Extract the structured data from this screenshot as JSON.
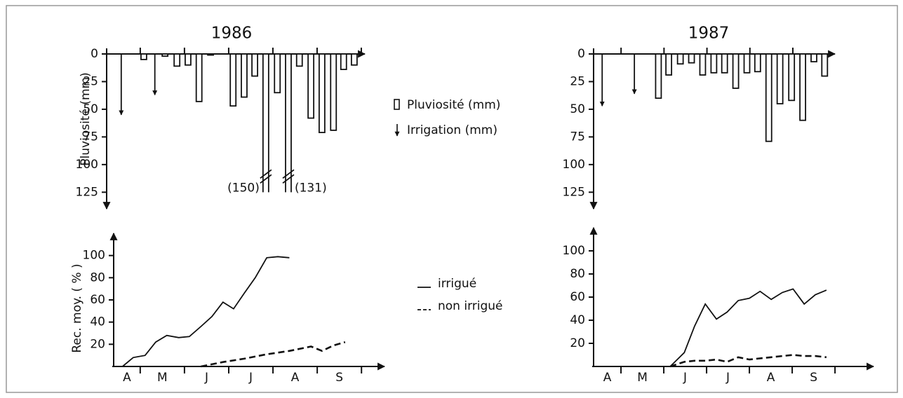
{
  "chart_data": [
    {
      "type": "bar",
      "title": "1986",
      "y_label": "Pluviosité   (mm)",
      "y_inverted": true,
      "categories": [
        "A",
        "M",
        "J",
        "J",
        "A",
        "S"
      ],
      "xlim": [
        0.24,
        6.08
      ],
      "ylim": [
        0,
        140
      ],
      "yticks": [
        0,
        25,
        50,
        75,
        100,
        125
      ],
      "series": [
        {
          "name": "Pluviosité (mm)",
          "type": "bar",
          "color": "#111111",
          "x": [
            1.08,
            1.56,
            1.83,
            2.08,
            2.33,
            2.59,
            3.1,
            3.35,
            3.59,
            3.84,
            4.1,
            4.35,
            4.6,
            4.86,
            5.11,
            5.37,
            5.6,
            5.84
          ],
          "values": [
            5,
            2,
            11,
            10,
            43,
            1,
            47,
            39,
            20,
            150,
            35,
            131,
            11,
            58,
            71,
            69,
            14,
            10
          ],
          "value_labels": [
            null,
            null,
            null,
            null,
            null,
            null,
            null,
            null,
            null,
            "(150)",
            null,
            "(131)",
            null,
            null,
            null,
            null,
            null,
            null
          ]
        },
        {
          "name": "Irrigation (mm)",
          "type": "arrow",
          "color": "#111111",
          "x": [
            0.57,
            1.33
          ],
          "values": [
            55,
            37
          ]
        }
      ]
    },
    {
      "type": "line",
      "y_label": "Rec. moy. ( % )",
      "categories": [
        "A",
        "M",
        "J",
        "J",
        "A",
        "S"
      ],
      "xlim": [
        0.4,
        6.52
      ],
      "ylim": [
        0,
        120
      ],
      "yticks": [
        20,
        40,
        60,
        80,
        100
      ],
      "series": [
        {
          "name": "irrigué",
          "style": "solid",
          "color": "#111111",
          "x": [
            0.6,
            0.84,
            1.11,
            1.35,
            1.6,
            1.87,
            2.11,
            2.37,
            2.62,
            2.87,
            3.11,
            3.35,
            3.6,
            3.86,
            4.11,
            4.37
          ],
          "values": [
            0,
            8,
            10,
            22,
            28,
            26,
            27,
            36,
            45,
            58,
            52,
            66,
            80,
            98,
            99,
            98
          ]
        },
        {
          "name": "non irrigué",
          "style": "dashed",
          "color": "#111111",
          "x": [
            2.37,
            2.87,
            3.35,
            3.86,
            4.37,
            4.86,
            5.11,
            5.37,
            5.63
          ],
          "values": [
            0,
            4,
            7,
            11,
            14,
            18,
            14,
            19,
            22
          ]
        }
      ]
    },
    {
      "type": "bar",
      "title": "1987",
      "y_inverted": true,
      "categories": [
        "A",
        "M",
        "J",
        "J",
        "A",
        "S"
      ],
      "xlim": [
        0.36,
        5.98
      ],
      "ylim": [
        0,
        140
      ],
      "yticks": [
        0,
        25,
        50,
        75,
        100,
        125
      ],
      "series": [
        {
          "type": "bar",
          "color": "#111111",
          "x": [
            1.87,
            2.11,
            2.38,
            2.64,
            2.9,
            3.16,
            3.41,
            3.67,
            3.93,
            4.18,
            4.44,
            4.7,
            4.97,
            5.23,
            5.49,
            5.74
          ],
          "values": [
            40,
            19,
            9,
            8,
            19,
            17,
            17,
            31,
            17,
            16,
            79,
            45,
            42,
            60,
            7,
            20
          ]
        },
        {
          "type": "arrow",
          "color": "#111111",
          "x": [
            0.56,
            1.31
          ],
          "values": [
            47,
            36
          ]
        }
      ]
    },
    {
      "type": "line",
      "categories": [
        "A",
        "M",
        "J",
        "J",
        "A",
        "S"
      ],
      "xlim": [
        0.36,
        6.9
      ],
      "ylim": [
        0,
        120
      ],
      "yticks": [
        20,
        40,
        60,
        80,
        100
      ],
      "series": [
        {
          "style": "solid",
          "color": "#111111",
          "x": [
            2.15,
            2.48,
            2.72,
            2.97,
            3.23,
            3.48,
            3.74,
            4.0,
            4.25,
            4.51,
            4.77,
            5.02,
            5.28,
            5.54,
            5.8
          ],
          "values": [
            0,
            12,
            35,
            54,
            41,
            47,
            57,
            59,
            65,
            58,
            64,
            67,
            54,
            62,
            66
          ]
        },
        {
          "style": "dashed",
          "color": "#111111",
          "x": [
            2.15,
            2.48,
            2.72,
            2.97,
            3.23,
            3.48,
            3.74,
            4.0,
            4.25,
            4.51,
            4.77,
            5.02,
            5.28,
            5.54,
            5.8
          ],
          "values": [
            0,
            4,
            5,
            5,
            6,
            4,
            8,
            6,
            7,
            8,
            9,
            10,
            9,
            9,
            8
          ]
        }
      ]
    }
  ]
}
